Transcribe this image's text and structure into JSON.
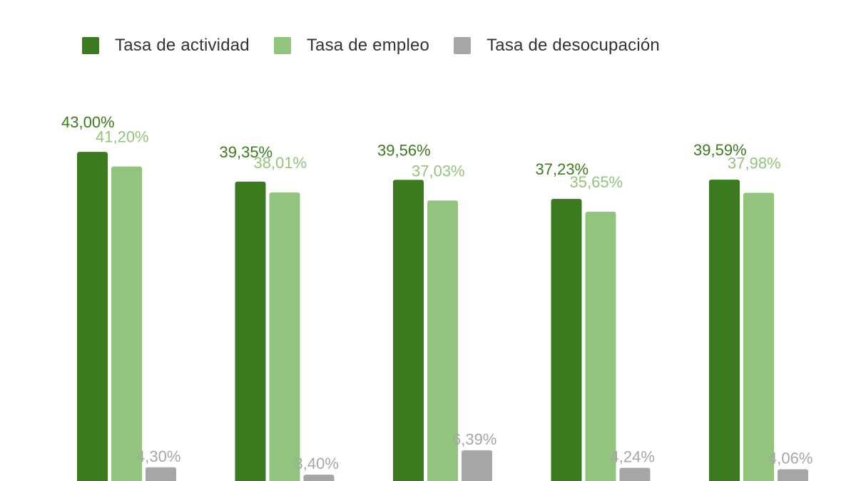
{
  "colors": {
    "actividad": "#3b7a1f",
    "empleo": "#93c47d",
    "desocupacion": "#a6a6a6"
  },
  "chart_data": {
    "type": "bar",
    "categories": [
      "",
      "",
      "",
      "",
      ""
    ],
    "series": [
      {
        "name": "Tasa de actividad",
        "values": [
          43.0,
          39.35,
          39.56,
          37.23,
          39.59
        ],
        "labels": [
          "43,00%",
          "39,35%",
          "39,56%",
          "37,23%",
          "39,59%"
        ]
      },
      {
        "name": "Tasa de empleo",
        "values": [
          41.2,
          38.01,
          37.03,
          35.65,
          37.98
        ],
        "labels": [
          "41,20%",
          "38,01%",
          "37,03%",
          "35,65%",
          "37,98%"
        ]
      },
      {
        "name": "Tasa de desocupación",
        "values": [
          4.3,
          3.4,
          6.39,
          4.24,
          4.06
        ],
        "labels": [
          "4,30%",
          "3,40%",
          "6,39%",
          "4,24%",
          "4,06%"
        ]
      }
    ],
    "ylim": [
      0,
      45
    ],
    "grid": false,
    "legend_position": "top"
  }
}
